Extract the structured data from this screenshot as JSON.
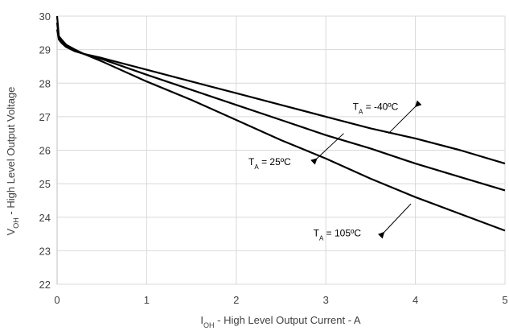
{
  "chart_data": {
    "type": "line",
    "xlabel": {
      "main": "I",
      "sub": "OH",
      "rest": " - High Level Output Current - A"
    },
    "ylabel": {
      "main": "V",
      "sub": "OH",
      "rest": " - High Level Output Voltage"
    },
    "xlim": [
      0,
      5
    ],
    "ylim": [
      22,
      30
    ],
    "xticks": [
      0,
      1,
      2,
      3,
      4,
      5
    ],
    "yticks": [
      22,
      23,
      24,
      25,
      26,
      27,
      28,
      29,
      30
    ],
    "grid": true,
    "series": [
      {
        "name": "T_A = -40°C",
        "x": [
          0,
          0.02,
          0.05,
          0.1,
          0.2,
          0.3,
          0.5,
          1,
          1.5,
          2,
          2.5,
          3,
          3.5,
          4,
          4.5,
          5
        ],
        "y": [
          30,
          29.4,
          29.3,
          29.15,
          29.0,
          28.87,
          28.75,
          28.4,
          28.05,
          27.7,
          27.35,
          27.0,
          26.65,
          26.35,
          26.0,
          25.6
        ]
      },
      {
        "name": "T_A = 25°C",
        "x": [
          0,
          0.02,
          0.05,
          0.1,
          0.2,
          0.3,
          0.5,
          1,
          1.5,
          2,
          2.5,
          3,
          3.5,
          4,
          4.5,
          5
        ],
        "y": [
          29.8,
          29.35,
          29.25,
          29.1,
          28.98,
          28.87,
          28.72,
          28.25,
          27.8,
          27.35,
          26.9,
          26.45,
          26.05,
          25.6,
          25.2,
          24.8
        ]
      },
      {
        "name": "T_A = 105°C",
        "x": [
          0,
          0.02,
          0.05,
          0.1,
          0.2,
          0.3,
          0.5,
          1,
          1.5,
          2,
          2.5,
          3,
          3.5,
          4,
          4.5,
          5
        ],
        "y": [
          29.6,
          29.3,
          29.2,
          29.08,
          28.95,
          28.87,
          28.65,
          28.05,
          27.5,
          26.9,
          26.3,
          25.75,
          25.15,
          24.6,
          24.1,
          23.6
        ]
      }
    ],
    "annotations": [
      {
        "main": "T",
        "sub": "A",
        "rest": " = -40ºC",
        "arrow_from": [
          4.0,
          27.3
        ],
        "arrow_to": [
          3.7,
          26.5
        ]
      },
      {
        "main": "T",
        "sub": "A",
        "rest": " = 25ºC",
        "arrow_from": [
          2.9,
          25.75
        ],
        "arrow_to": [
          3.2,
          26.5
        ]
      },
      {
        "main": "T",
        "sub": "A",
        "rest": " = 105ºC",
        "arrow_from": [
          3.65,
          23.55
        ],
        "arrow_to": [
          3.95,
          24.4
        ]
      }
    ]
  }
}
